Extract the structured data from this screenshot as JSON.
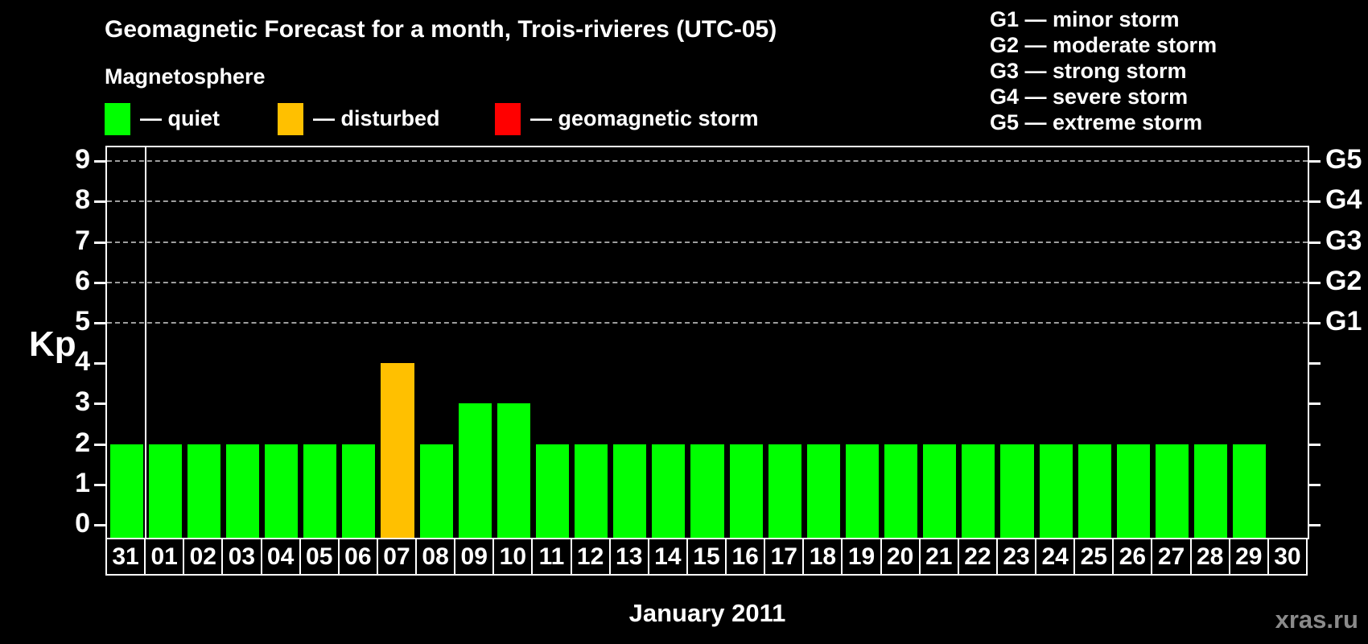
{
  "header": {
    "title": "Geomagnetic Forecast for a month, Trois-rivieres (UTC-05)",
    "subtitle": "Magnetosphere"
  },
  "legend": {
    "items": [
      {
        "name": "quiet",
        "label": "— quiet",
        "color": "#00ff00"
      },
      {
        "name": "disturbed",
        "label": "— disturbed",
        "color": "#ffc000"
      },
      {
        "name": "storm",
        "label": "— geomagnetic storm",
        "color": "#ff0000"
      }
    ]
  },
  "g_scale_legend": {
    "lines": [
      "G1 — minor storm",
      "G2 — moderate storm",
      "G3 — strong storm",
      "G4 — severe storm",
      "G5 — extreme storm"
    ]
  },
  "chart_data": {
    "type": "bar",
    "title": "Geomagnetic Forecast for a month, Trois-rivieres (UTC-05)",
    "xlabel": "January 2011",
    "ylabel": "Kp",
    "ylim": [
      0,
      9
    ],
    "yticks": [
      0,
      1,
      2,
      3,
      4,
      5,
      6,
      7,
      8,
      9
    ],
    "grid_values": [
      5,
      6,
      7,
      8,
      9
    ],
    "grid": "dashed horizontal at Kp 5-9",
    "legend_position": "top",
    "categories": [
      "31",
      "01",
      "02",
      "03",
      "04",
      "05",
      "06",
      "07",
      "08",
      "09",
      "10",
      "11",
      "12",
      "13",
      "14",
      "15",
      "16",
      "17",
      "18",
      "19",
      "20",
      "21",
      "22",
      "23",
      "24",
      "25",
      "26",
      "27",
      "28",
      "29",
      "30"
    ],
    "values": [
      2,
      2,
      2,
      2,
      2,
      2,
      2,
      4,
      2,
      3,
      3,
      2,
      2,
      2,
      2,
      2,
      2,
      2,
      2,
      2,
      2,
      2,
      2,
      2,
      2,
      2,
      2,
      2,
      2,
      2,
      null
    ],
    "statuses": [
      "quiet",
      "quiet",
      "quiet",
      "quiet",
      "quiet",
      "quiet",
      "quiet",
      "disturbed",
      "quiet",
      "quiet",
      "quiet",
      "quiet",
      "quiet",
      "quiet",
      "quiet",
      "quiet",
      "quiet",
      "quiet",
      "quiet",
      "quiet",
      "quiet",
      "quiet",
      "quiet",
      "quiet",
      "quiet",
      "quiet",
      "quiet",
      "quiet",
      "quiet",
      "quiet",
      "none"
    ],
    "colors": {
      "quiet": "#00ff00",
      "disturbed": "#ffc000",
      "storm": "#ff0000"
    },
    "right_axis_labels": [
      {
        "value": 5,
        "label": "G1"
      },
      {
        "value": 6,
        "label": "G2"
      },
      {
        "value": 7,
        "label": "G3"
      },
      {
        "value": 8,
        "label": "G4"
      },
      {
        "value": 9,
        "label": "G5"
      }
    ],
    "month_separator_after_category": "31"
  },
  "footer": {
    "watermark": "xras.ru"
  }
}
